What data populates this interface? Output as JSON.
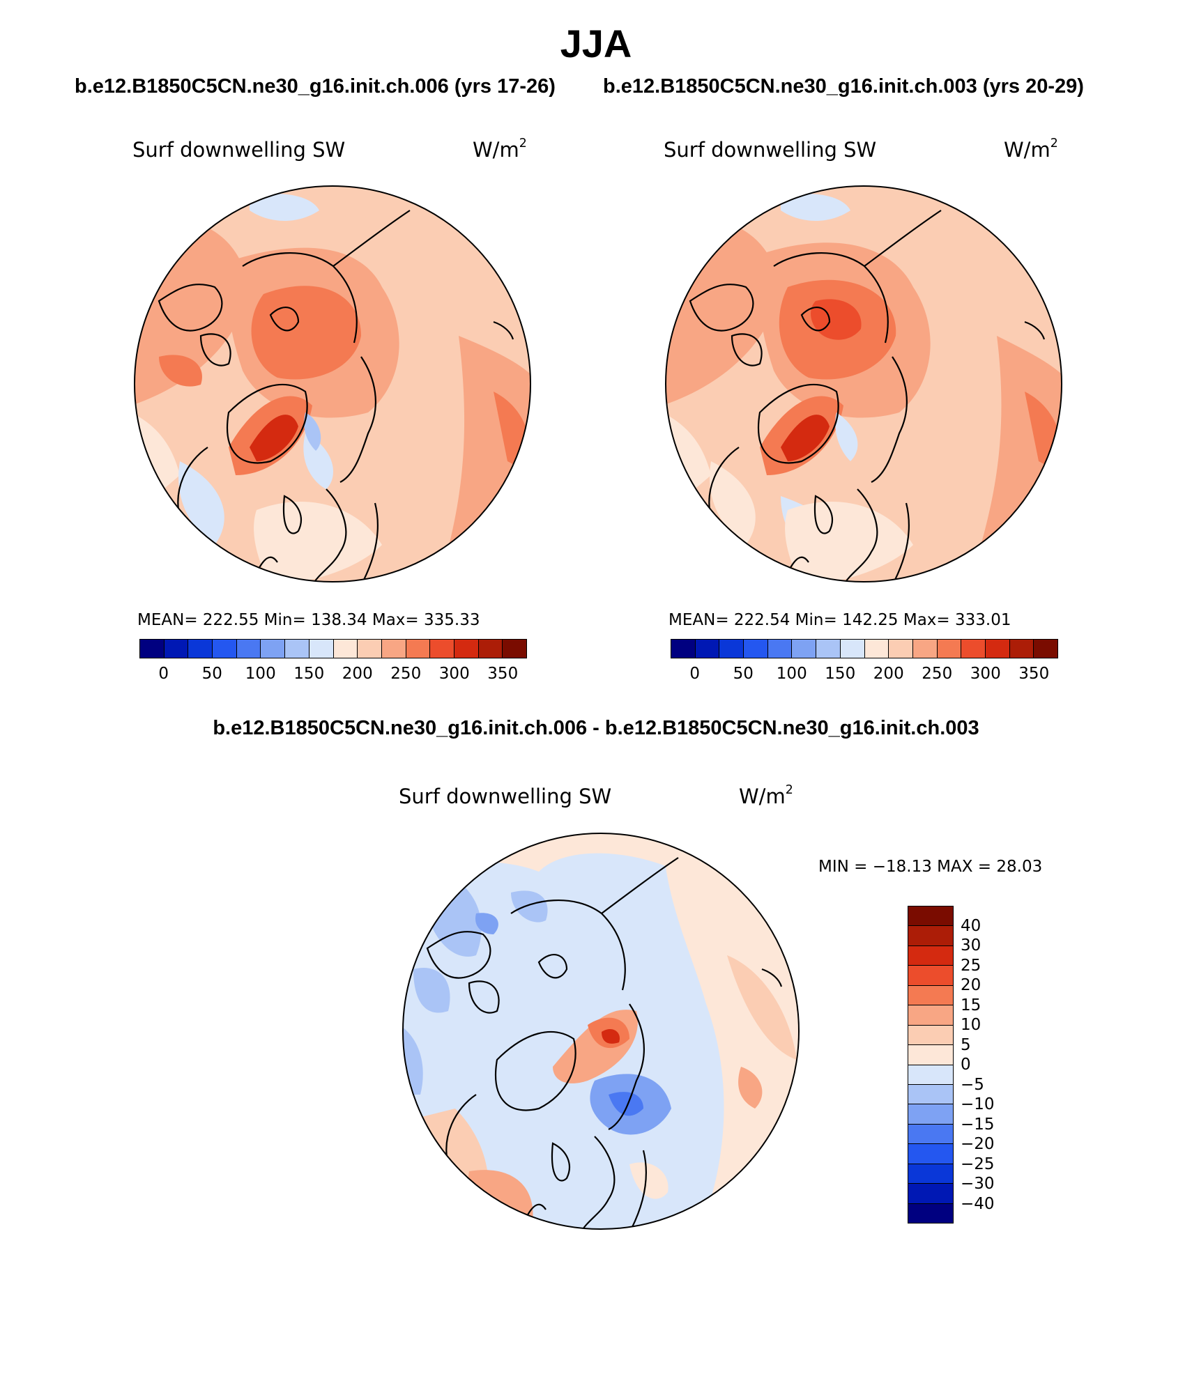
{
  "title": "JJA",
  "run_titles": {
    "left": "b.e12.B1850C5CN.ne30_g16.init.ch.006 (yrs 17-26)",
    "right": "b.e12.B1850C5CN.ne30_g16.init.ch.003 (yrs 20-29)"
  },
  "diff_title": "b.e12.B1850C5CN.ne30_g16.init.ch.006 - b.e12.B1850C5CN.ne30_g16.init.ch.003",
  "variable": "Surf downwelling SW",
  "units_base": "W/m",
  "units_exp": "2",
  "panel_left": {
    "stats": "MEAN= 222.55   Min= 138.34   Max= 335.33"
  },
  "panel_right": {
    "stats": "MEAN= 222.54   Min= 142.25   Max= 333.01"
  },
  "panel_diff": {
    "stats": "MIN = −18.13 MAX =  28.03"
  },
  "abs_colorbar": {
    "ticks": [
      "0",
      "50",
      "100",
      "150",
      "200",
      "250",
      "300",
      "350"
    ],
    "colors": [
      "#000080",
      "#0018b4",
      "#0a37d8",
      "#2457f0",
      "#4a78f2",
      "#7ea2f3",
      "#aac4f6",
      "#d8e6fa",
      "#fde7d8",
      "#fbcdb3",
      "#f8a684",
      "#f47a52",
      "#ec4d2c",
      "#d42a10",
      "#ac1d07",
      "#7a0c00"
    ]
  },
  "diff_colorbar": {
    "ticks": [
      "40",
      "30",
      "25",
      "20",
      "15",
      "10",
      "5",
      "0",
      "−5",
      "−10",
      "−15",
      "−20",
      "−25",
      "−30",
      "−40"
    ],
    "colors": [
      "#7a0c00",
      "#ac1d07",
      "#d42a10",
      "#ec4d2c",
      "#f47a52",
      "#f8a684",
      "#fbcdb3",
      "#fde7d8",
      "#d8e6fa",
      "#aac4f6",
      "#7ea2f3",
      "#4a78f2",
      "#2457f0",
      "#0a37d8",
      "#0018b4",
      "#000080"
    ]
  }
}
